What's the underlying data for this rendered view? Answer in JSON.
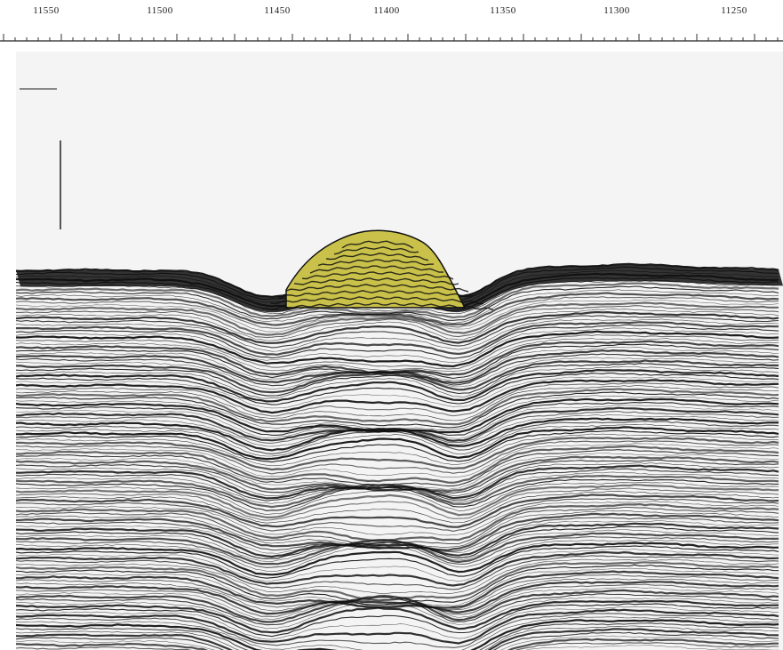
{
  "scale": {
    "tick_labels": [
      "11550",
      "11500",
      "11450",
      "11400",
      "11350",
      "11300",
      "11250"
    ]
  },
  "section": {
    "highlight_color": "#c9c14a",
    "reflector_color": "#111111",
    "water_color": "#f4f4f4"
  }
}
